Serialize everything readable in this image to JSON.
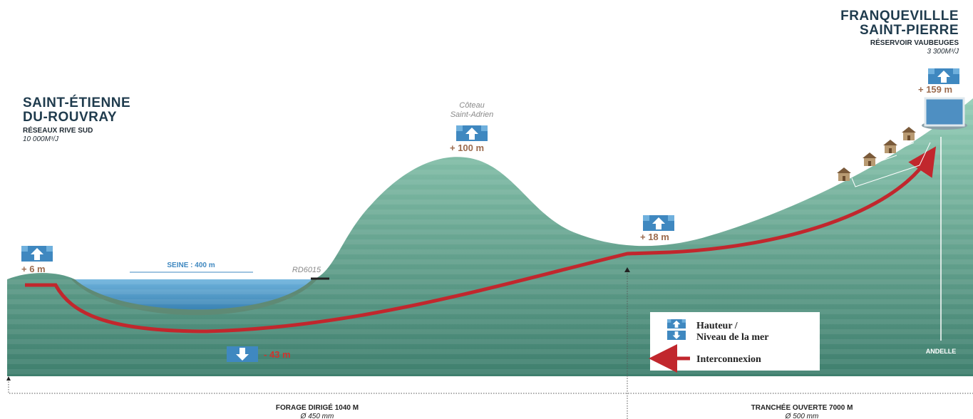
{
  "places": [
    {
      "lines": [
        "SAINT-ÉTIENNE",
        "DU-ROUVRAY"
      ],
      "network": "RÉSEAUX RIVE SUD",
      "capacity": "10 000M³/J"
    },
    {
      "lines": [
        "FRANQUEVILLLE",
        "SAINT-PIERRE"
      ],
      "network": "RÉSERVOIR VAUBEUGES",
      "capacity": "3 300M³/J"
    }
  ],
  "hill": {
    "lines": [
      "Côteau",
      "Saint-Adrien"
    ]
  },
  "elevations": [
    "+ 6 m",
    "- 43 m",
    "+ 100 m",
    "+ 18 m",
    "+ 159 m"
  ],
  "labels": {
    "river": "SEINE : 400 m",
    "road": "RD6015",
    "stream": "ANDELLE"
  },
  "legend": {
    "height": [
      "Hauteur /",
      "Niveau de la mer"
    ],
    "pipe": "Interconnexion"
  },
  "sections": [
    {
      "method": "FORAGE DIRIGÉ 1040 M",
      "diameter": "Ø 450 mm"
    },
    {
      "method": "TRANCHÉE OUVERTE 7000 M",
      "diameter": "Ø 500 mm"
    }
  ]
}
